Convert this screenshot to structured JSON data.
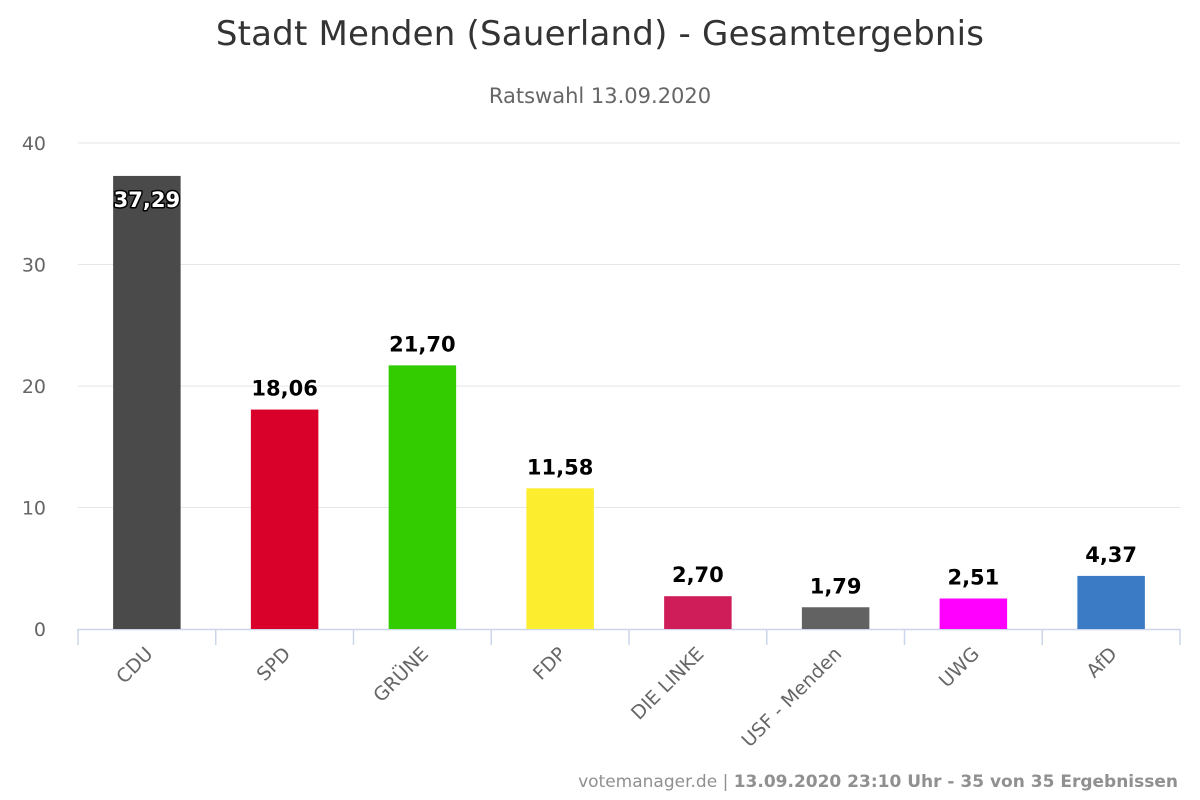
{
  "chart_data": {
    "type": "bar",
    "title": "Stadt Menden (Sauerland) - Gesamtergebnis",
    "subtitle": "Ratswahl 13.09.2020",
    "categories": [
      "CDU",
      "SPD",
      "GRÜNE",
      "FDP",
      "DIE LINKE",
      "USF - Menden",
      "UWG",
      "AfD"
    ],
    "values": [
      37.29,
      18.06,
      21.7,
      11.58,
      2.7,
      1.79,
      2.51,
      4.37
    ],
    "value_labels": [
      "37,29",
      "18,06",
      "21,70",
      "11,58",
      "2,70",
      "1,79",
      "2,51",
      "4,37"
    ],
    "colors": [
      "#4a4a4a",
      "#d9002a",
      "#33cc00",
      "#fced2e",
      "#cf1d5a",
      "#626262",
      "#ff00ff",
      "#3b7ac4"
    ],
    "ylim": [
      0,
      40
    ],
    "yticks": [
      0,
      10,
      20,
      30,
      40
    ],
    "grid": true,
    "xlabel": "",
    "ylabel": ""
  },
  "credits": {
    "source": "votemanager.de",
    "separator": " | ",
    "info": "13.09.2020 23:10 Uhr - 35 von 35 Ergebnissen"
  }
}
